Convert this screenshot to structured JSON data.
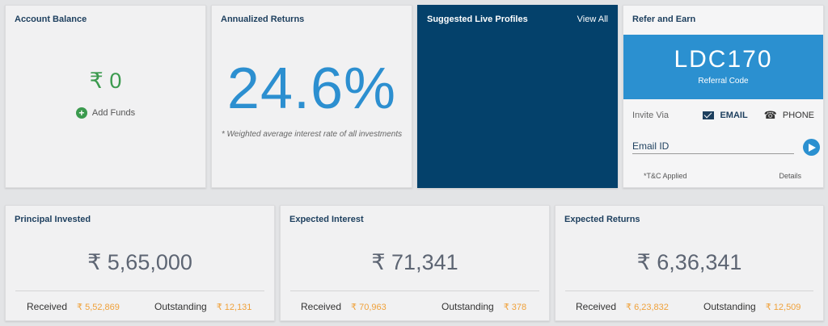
{
  "account_balance": {
    "title": "Account Balance",
    "value": "₹ 0",
    "add_funds": "Add Funds",
    "add_icon": "+"
  },
  "annualized_returns": {
    "title": "Annualized Returns",
    "value": "24.6%",
    "note": "* Weighted average interest rate of all investments"
  },
  "suggested_profiles": {
    "title": "Suggested Live Profiles",
    "view_all": "View All"
  },
  "refer_earn": {
    "title": "Refer and Earn",
    "code": "LDC170",
    "code_label": "Referral Code",
    "invite_label": "Invite Via",
    "email_option": "EMAIL",
    "phone_option": "PHONE",
    "phone_icon": "☎",
    "email_placeholder": "Email ID",
    "tnc": "*T&C Applied",
    "details": "Details"
  },
  "principal_invested": {
    "title": "Principal Invested",
    "value": "₹ 5,65,000",
    "received_label": "Received",
    "received_value": "₹ 5,52,869",
    "outstanding_label": "Outstanding",
    "outstanding_value": "₹ 12,131"
  },
  "expected_interest": {
    "title": "Expected Interest",
    "value": "₹ 71,341",
    "received_label": "Received",
    "received_value": "₹ 70,963",
    "outstanding_label": "Outstanding",
    "outstanding_value": "₹ 378"
  },
  "expected_returns": {
    "title": "Expected Returns",
    "value": "₹ 6,36,341",
    "received_label": "Received",
    "received_value": "₹ 6,23,832",
    "outstanding_label": "Outstanding",
    "outstanding_value": "₹ 12,509"
  },
  "colors": {
    "accent_blue": "#2b90d0",
    "navy": "#04416b",
    "green": "#3b9a4e",
    "orange": "#f0a13a"
  }
}
